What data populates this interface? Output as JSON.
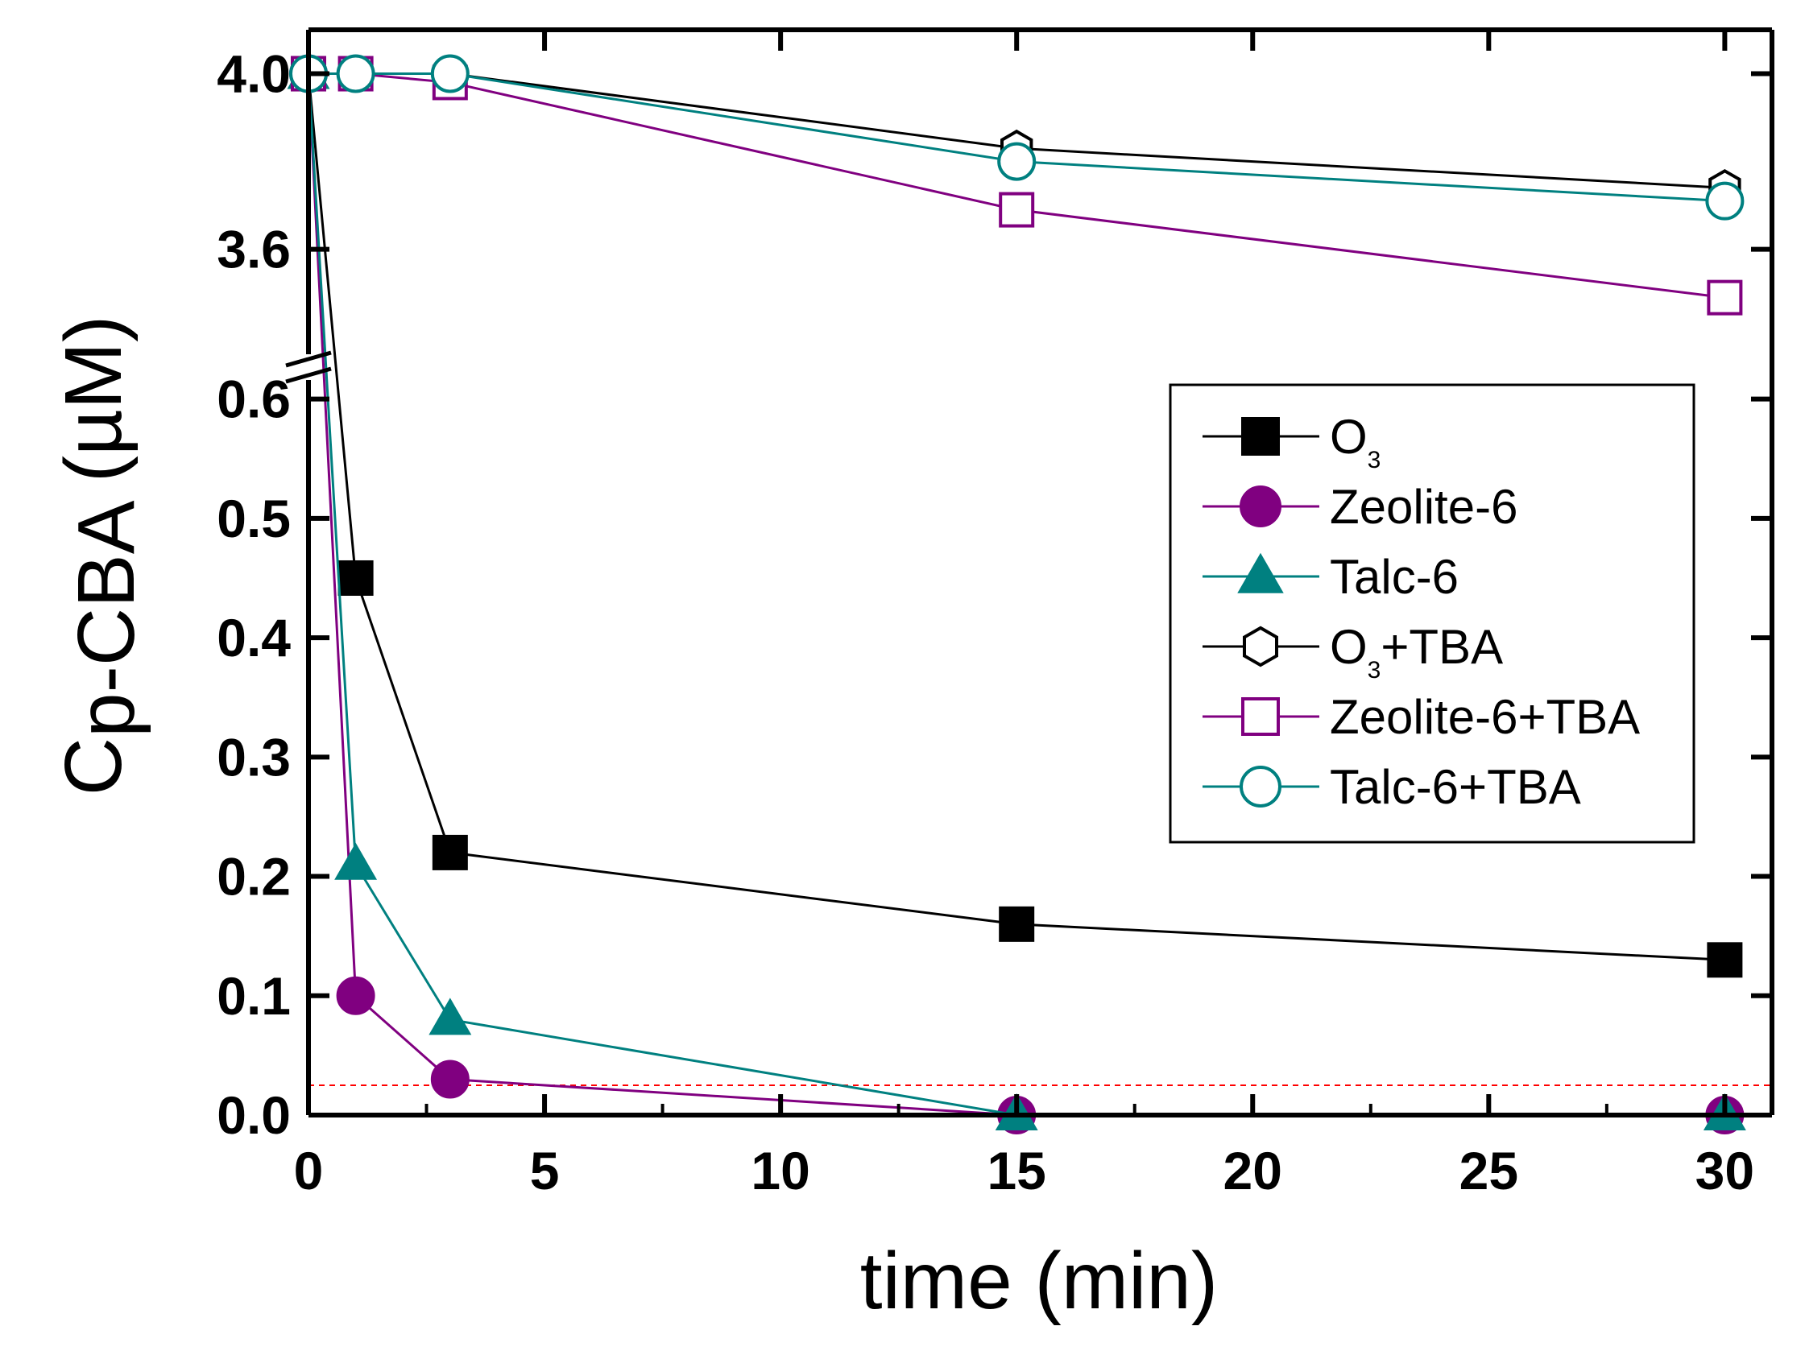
{
  "chart_data": {
    "type": "line",
    "xlabel": "time (min)",
    "ylabel": {
      "main": "C",
      "subscript": "p-CBA",
      "unit": " (µM)"
    },
    "xlim": [
      0,
      31
    ],
    "xticks": [
      0,
      5,
      10,
      15,
      20,
      25,
      30
    ],
    "ylim_lower": [
      0,
      0.62
    ],
    "ylim_upper": [
      3.35,
      4.1
    ],
    "yticks_lower": [
      "0.0",
      "0.1",
      "0.2",
      "0.3",
      "0.4",
      "0.5",
      "0.6"
    ],
    "yticks_upper": [
      "3.6",
      "4.0"
    ],
    "axis_break": "between 0.62 and 3.35",
    "reference_line": {
      "y": 0.025,
      "color": "#ff0000",
      "style": "dashed"
    },
    "legend_position": "center-right",
    "x": [
      0,
      1,
      3,
      15,
      30
    ],
    "series": [
      {
        "name": "O",
        "name_sub": "3",
        "name_suffix": "",
        "marker": "square",
        "filled": true,
        "color": "#000000",
        "values": [
          4.0,
          0.45,
          0.22,
          0.16,
          0.13
        ]
      },
      {
        "name": "Zeolite-6",
        "name_sub": "",
        "name_suffix": "",
        "marker": "circle",
        "filled": true,
        "color": "#800080",
        "values": [
          4.0,
          0.1,
          0.03,
          0.0,
          0.0
        ]
      },
      {
        "name": "Talc-6",
        "name_sub": "",
        "name_suffix": "",
        "marker": "triangle",
        "filled": true,
        "color": "#008080",
        "values": [
          4.0,
          0.21,
          0.08,
          0.0,
          0.0
        ]
      },
      {
        "name": "O",
        "name_sub": "3",
        "name_suffix": "+TBA",
        "marker": "hexagon",
        "filled": false,
        "color": "#000000",
        "values": [
          4.0,
          4.0,
          4.0,
          3.83,
          3.74
        ]
      },
      {
        "name": "Zeolite-6+TBA",
        "name_sub": "",
        "name_suffix": "",
        "marker": "square",
        "filled": false,
        "color": "#800080",
        "values": [
          4.0,
          4.0,
          3.98,
          3.69,
          3.49
        ]
      },
      {
        "name": "Talc-6+TBA",
        "name_sub": "",
        "name_suffix": "",
        "marker": "circle",
        "filled": false,
        "color": "#008080",
        "values": [
          4.0,
          4.0,
          4.0,
          3.8,
          3.71
        ]
      }
    ]
  }
}
